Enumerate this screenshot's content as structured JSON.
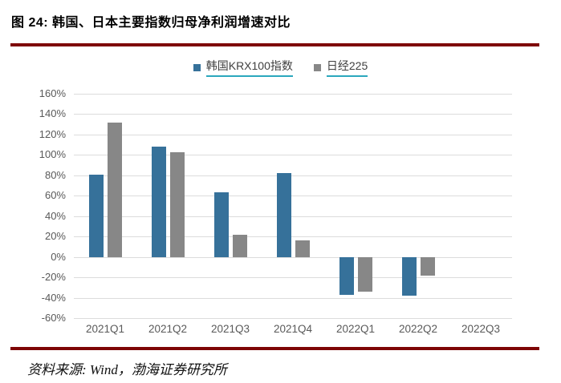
{
  "header": {
    "title": "图 24:  韩国、日本主要指数归母净利润增速对比"
  },
  "footer": {
    "source": "资料来源: Wind，渤海证券研究所"
  },
  "colors": {
    "series_krx": "#36719A",
    "series_nikkei": "#878787",
    "rule": "#7E0505",
    "legend_underline": "#2BA7BD",
    "axis_text": "#595959",
    "gridline": "#DCDCDC",
    "background": "#FFFFFF"
  },
  "chart_data": {
    "type": "bar",
    "title": "",
    "categories": [
      "2021Q1",
      "2021Q2",
      "2021Q3",
      "2021Q4",
      "2022Q1",
      "2022Q2",
      "2022Q3"
    ],
    "series": [
      {
        "name": "韩国KRX100指数",
        "color": "#36719A",
        "values": [
          81,
          108,
          63,
          82,
          -37,
          -38,
          null
        ]
      },
      {
        "name": "日经225",
        "color": "#878787",
        "values": [
          132,
          103,
          22,
          16,
          -34,
          -18,
          null
        ]
      }
    ],
    "ylabel": "",
    "xlabel": "",
    "ylim": [
      -60,
      160
    ],
    "yticks": [
      160,
      140,
      120,
      100,
      80,
      60,
      40,
      20,
      0,
      -20,
      -40,
      -60
    ],
    "ytick_suffix": "%",
    "grid": true,
    "legend_position": "top-center"
  }
}
